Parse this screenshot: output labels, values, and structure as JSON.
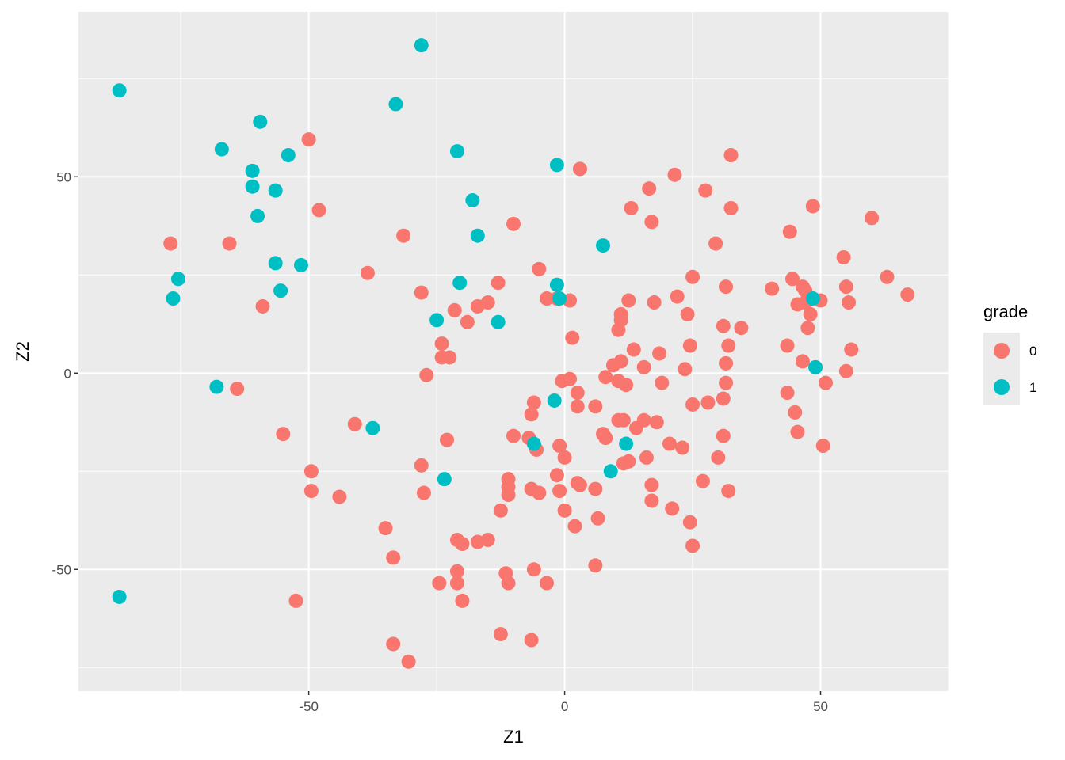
{
  "chart_data": {
    "type": "scatter",
    "xlabel": "Z1",
    "ylabel": "Z2",
    "xlim": [
      -95,
      75
    ],
    "ylim": [
      -81,
      92
    ],
    "x_ticks": [
      -50,
      0,
      50
    ],
    "y_ticks": [
      -50,
      0,
      50
    ],
    "x_tick_labels": [
      "-50",
      "0",
      "50"
    ],
    "y_tick_labels": [
      "-50",
      "0",
      "50"
    ],
    "grid": true,
    "legend": {
      "title": "grade",
      "position": "right",
      "entries": [
        {
          "label": "0",
          "color": "#F8766D"
        },
        {
          "label": "1",
          "color": "#00BFC4"
        }
      ]
    },
    "series": [
      {
        "name": "0",
        "color": "#F8766D",
        "points": [
          [
            -50,
            59.5
          ],
          [
            -77,
            33
          ],
          [
            -65.5,
            33
          ],
          [
            -48,
            41.5
          ],
          [
            -59,
            17
          ],
          [
            -64,
            -4
          ],
          [
            -55,
            -15.5
          ],
          [
            -41,
            -13
          ],
          [
            -49.5,
            -25
          ],
          [
            -49.5,
            -30
          ],
          [
            -44,
            -31.5
          ],
          [
            -52.5,
            -58
          ],
          [
            -38.5,
            25.5
          ],
          [
            -35,
            -39.5
          ],
          [
            -33.5,
            -47
          ],
          [
            -33.5,
            -69
          ],
          [
            -30.5,
            -73.5
          ],
          [
            -31.5,
            35
          ],
          [
            -28,
            20.5
          ],
          [
            -28,
            -23.5
          ],
          [
            -27.5,
            -30.5
          ],
          [
            -27,
            -0.5
          ],
          [
            -24,
            7.5
          ],
          [
            -24,
            4
          ],
          [
            -22.5,
            4
          ],
          [
            -23,
            -17
          ],
          [
            -21.5,
            16
          ],
          [
            -21,
            -42.5
          ],
          [
            -20,
            -43.5
          ],
          [
            -21,
            -50.5
          ],
          [
            -21,
            -53.5
          ],
          [
            -24.5,
            -53.5
          ],
          [
            -20,
            -58
          ],
          [
            -19,
            13
          ],
          [
            -17,
            17
          ],
          [
            -17,
            -43
          ],
          [
            -15,
            18
          ],
          [
            -15,
            -42.5
          ],
          [
            -13,
            23
          ],
          [
            -12.5,
            -35
          ],
          [
            -12.5,
            -66.5
          ],
          [
            -11.5,
            -51
          ],
          [
            -11,
            -53.5
          ],
          [
            -11,
            -27
          ],
          [
            -11,
            -29
          ],
          [
            -11,
            -31
          ],
          [
            -10,
            -16
          ],
          [
            -10,
            38
          ],
          [
            -5,
            26.5
          ],
          [
            -3.5,
            19
          ],
          [
            -1.5,
            19
          ],
          [
            1,
            18.5
          ],
          [
            1.5,
            9
          ],
          [
            1,
            -1.5
          ],
          [
            -0.5,
            -2
          ],
          [
            -6,
            -7.5
          ],
          [
            -6.5,
            -10.5
          ],
          [
            -7,
            -16.5
          ],
          [
            -5.5,
            -19.5
          ],
          [
            -1,
            -18.5
          ],
          [
            0,
            -21.5
          ],
          [
            -1.5,
            -26
          ],
          [
            -1,
            -30
          ],
          [
            0,
            -35
          ],
          [
            -6.5,
            -29.5
          ],
          [
            -5,
            -30.5
          ],
          [
            -6,
            -50
          ],
          [
            -6.5,
            -68
          ],
          [
            -3.5,
            -53.5
          ],
          [
            2.5,
            -5
          ],
          [
            2.5,
            -8.5
          ],
          [
            2.5,
            -28
          ],
          [
            3,
            -28.5
          ],
          [
            2,
            -39
          ],
          [
            6,
            -8.5
          ],
          [
            6,
            -29.5
          ],
          [
            6.5,
            -37
          ],
          [
            6,
            -49
          ],
          [
            3,
            52
          ],
          [
            7.5,
            -15.5
          ],
          [
            8,
            -16.5
          ],
          [
            8,
            -1
          ],
          [
            9.5,
            2
          ],
          [
            10.5,
            11
          ],
          [
            11,
            13.5
          ],
          [
            11,
            15
          ],
          [
            11,
            3
          ],
          [
            12.5,
            18.5
          ],
          [
            10.5,
            -2
          ],
          [
            12,
            -3
          ],
          [
            10.5,
            -12
          ],
          [
            11.5,
            -12
          ],
          [
            11.5,
            -23
          ],
          [
            12.5,
            -22.5
          ],
          [
            13.5,
            6
          ],
          [
            14,
            -14
          ],
          [
            15.5,
            1.5
          ],
          [
            15.5,
            -12
          ],
          [
            16,
            -21.5
          ],
          [
            13,
            42
          ],
          [
            16.5,
            47
          ],
          [
            17,
            38.5
          ],
          [
            17.5,
            18
          ],
          [
            18.5,
            5
          ],
          [
            19,
            -2.5
          ],
          [
            18,
            -12.5
          ],
          [
            17,
            -28.5
          ],
          [
            17,
            -32.5
          ],
          [
            20.5,
            -18
          ],
          [
            21,
            -34.5
          ],
          [
            21.5,
            50.5
          ],
          [
            22,
            19.5
          ],
          [
            23,
            -19
          ],
          [
            23.5,
            1
          ],
          [
            24,
            15
          ],
          [
            24.5,
            7
          ],
          [
            24.5,
            -38
          ],
          [
            25,
            24.5
          ],
          [
            25,
            -8
          ],
          [
            25,
            -44
          ],
          [
            27,
            -27.5
          ],
          [
            27.5,
            46.5
          ],
          [
            28,
            -7.5
          ],
          [
            29.5,
            33
          ],
          [
            30,
            -21.5
          ],
          [
            31,
            12
          ],
          [
            31,
            -6.5
          ],
          [
            31,
            -16
          ],
          [
            31.5,
            22
          ],
          [
            31.5,
            2.5
          ],
          [
            31.5,
            -2.5
          ],
          [
            32,
            7
          ],
          [
            32,
            -30
          ],
          [
            32.5,
            42
          ],
          [
            32.5,
            55.5
          ],
          [
            34.5,
            11.5
          ],
          [
            40.5,
            21.5
          ],
          [
            43.5,
            7
          ],
          [
            43.5,
            -5
          ],
          [
            44,
            36
          ],
          [
            44.5,
            24
          ],
          [
            45,
            -10
          ],
          [
            45.5,
            -15
          ],
          [
            45.5,
            17.5
          ],
          [
            46.5,
            22
          ],
          [
            47,
            21
          ],
          [
            47,
            18
          ],
          [
            46.5,
            3
          ],
          [
            47.5,
            11.5
          ],
          [
            48,
            15
          ],
          [
            48.5,
            42.5
          ],
          [
            50,
            18.5
          ],
          [
            50.5,
            -18.5
          ],
          [
            51,
            -2.5
          ],
          [
            54.5,
            29.5
          ],
          [
            55,
            22
          ],
          [
            55,
            0.5
          ],
          [
            55.5,
            18
          ],
          [
            56,
            6
          ],
          [
            60,
            39.5
          ],
          [
            63,
            24.5
          ],
          [
            67,
            20
          ]
        ]
      },
      {
        "name": "1",
        "color": "#00BFC4",
        "points": [
          [
            -87,
            72
          ],
          [
            -87,
            -57
          ],
          [
            -75.5,
            24
          ],
          [
            -76.5,
            19
          ],
          [
            -67,
            57
          ],
          [
            -68,
            -3.5
          ],
          [
            -61,
            51.5
          ],
          [
            -61,
            47.5
          ],
          [
            -59.5,
            64
          ],
          [
            -60,
            40
          ],
          [
            -54,
            55.5
          ],
          [
            -56.5,
            46.5
          ],
          [
            -56.5,
            28
          ],
          [
            -55.5,
            21
          ],
          [
            -51.5,
            27.5
          ],
          [
            -37.5,
            -14
          ],
          [
            -33,
            68.5
          ],
          [
            -28,
            83.5
          ],
          [
            -25,
            13.5
          ],
          [
            -23.5,
            -27
          ],
          [
            -21,
            56.5
          ],
          [
            -20.5,
            23
          ],
          [
            -18,
            44
          ],
          [
            -17,
            35
          ],
          [
            -13,
            13
          ],
          [
            -6,
            -18
          ],
          [
            -2,
            -7
          ],
          [
            -1.5,
            53
          ],
          [
            -1.5,
            22.5
          ],
          [
            -1,
            19
          ],
          [
            7.5,
            32.5
          ],
          [
            9,
            -25
          ],
          [
            12,
            -18
          ],
          [
            48.5,
            19
          ],
          [
            49,
            1.5
          ]
        ]
      }
    ]
  }
}
